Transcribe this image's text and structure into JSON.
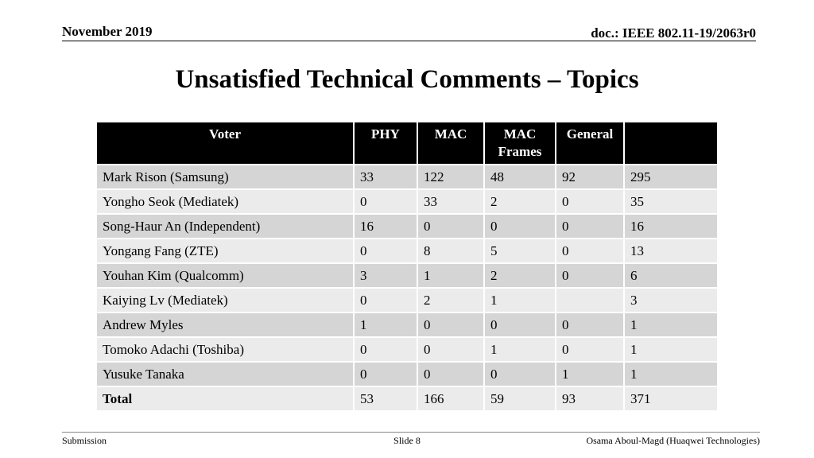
{
  "header": {
    "date": "November 2019",
    "doc_id": "doc.: IEEE 802.11-19/2063r0"
  },
  "title": "Unsatisfied Technical Comments – Topics",
  "table": {
    "columns": [
      "Voter",
      "PHY",
      "MAC",
      "MAC Frames",
      "General",
      ""
    ],
    "rows": [
      [
        "Mark Rison (Samsung)",
        "33",
        "122",
        "48",
        "92",
        "295"
      ],
      [
        "Yongho Seok (Mediatek)",
        "0",
        "33",
        "2",
        "0",
        "35"
      ],
      [
        "Song-Haur An (Independent)",
        "16",
        "0",
        "0",
        "0",
        "16"
      ],
      [
        "Yongang Fang (ZTE)",
        "0",
        "8",
        "5",
        "0",
        "13"
      ],
      [
        "Youhan Kim (Qualcomm)",
        "3",
        "1",
        "2",
        "0",
        "6"
      ],
      [
        "Kaiying Lv (Mediatek)",
        "0",
        "2",
        "1",
        "",
        "3"
      ],
      [
        "Andrew Myles",
        "1",
        "0",
        "0",
        "0",
        "1"
      ],
      [
        "Tomoko Adachi (Toshiba)",
        "0",
        "0",
        "1",
        "0",
        "1"
      ],
      [
        "Yusuke Tanaka",
        "0",
        "0",
        "0",
        "1",
        "1"
      ],
      [
        "Total",
        "53",
        "166",
        "59",
        "93",
        "371"
      ]
    ]
  },
  "footer": {
    "left": "Submission",
    "center": "Slide 8",
    "right": "Osama Aboul-Magd (Huaqwei Technologies)"
  }
}
